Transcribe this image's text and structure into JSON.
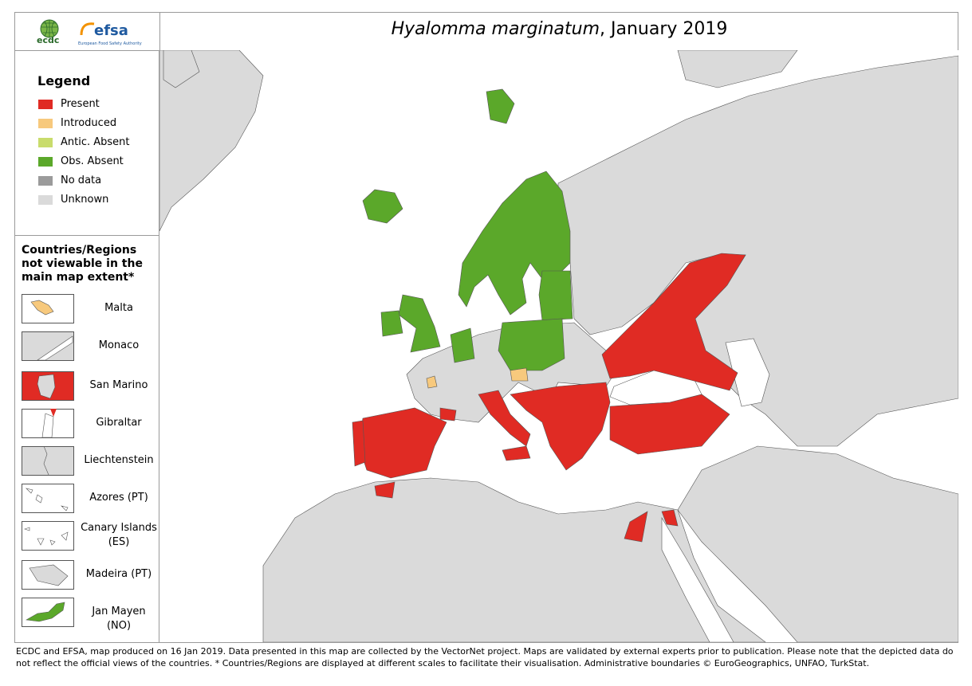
{
  "header": {
    "logos": [
      "ecdc",
      "efsa",
      "European Food Safety Authority"
    ],
    "title_italic": "Hyalomma marginatum",
    "title_rest": ", January 2019"
  },
  "legend": {
    "title": "Legend",
    "items": [
      {
        "label": "Present",
        "color": "#e02b24"
      },
      {
        "label": "Introduced",
        "color": "#f7c97d"
      },
      {
        "label": "Antic. Absent",
        "color": "#c9dc6c"
      },
      {
        "label": "Obs. Absent",
        "color": "#5ba82a"
      },
      {
        "label": "No data",
        "color": "#9b9b9b"
      },
      {
        "label": "Unknown",
        "color": "#dadada"
      }
    ]
  },
  "insets": {
    "title": "Countries/Regions not viewable in the main map extent*",
    "items": [
      "Malta",
      "Monaco",
      "San Marino",
      "Gibraltar",
      "Liechtenstein",
      "Azores (PT)",
      "Canary Islands (ES)",
      "Madeira (PT)",
      "Jan Mayen (NO)"
    ]
  },
  "footer": "ECDC and EFSA, map produced on 16 Jan 2019. Data presented in this map are collected by the VectorNet project. Maps are validated by external experts prior to publication. Please note that the depicted data do not reflect the official views of the countries. * Countries/Regions are displayed at different scales to facilitate their visualisation. Administrative boundaries © EuroGeographics, UNFAO, TurkStat."
}
